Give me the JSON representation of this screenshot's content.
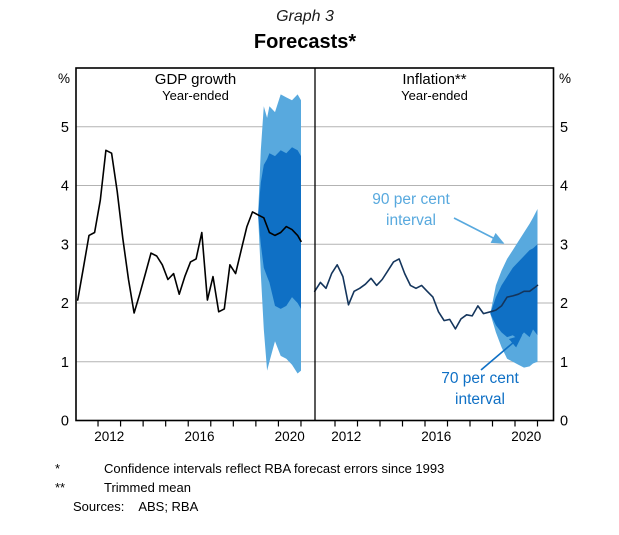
{
  "header": {
    "graph_label": "Graph 3",
    "title": "Forecasts*"
  },
  "axes": {
    "unit_left": "%",
    "unit_right": "%",
    "ylim": [
      0,
      6
    ],
    "yticks": [
      0,
      1,
      2,
      3,
      4,
      5
    ],
    "x_label_years": [
      "2012",
      "2016",
      "2020"
    ],
    "x_minor_tick_years": [
      2011.5,
      2012.5,
      2013.5,
      2014.5,
      2015.5,
      2016.5,
      2017.5,
      2018.5,
      2019.5,
      2020.5
    ],
    "x_range": [
      2010.52,
      2021.2
    ]
  },
  "colors": {
    "light_blue": "#58A9DE",
    "dark_blue": "#0F70C5",
    "gdp_line": "#000000",
    "inflation_line": "#14355C",
    "grid": "#b3b3b3",
    "frame": "#000000"
  },
  "annotations": {
    "band90": {
      "line1": "90 per cent",
      "line2": "interval"
    },
    "band70": {
      "line1": "70 per cent",
      "line2": "interval"
    }
  },
  "footnotes": [
    {
      "marker": "*",
      "text": "Confidence intervals reflect RBA forecast errors since 1993"
    },
    {
      "marker": "**",
      "text": "Trimmed mean"
    }
  ],
  "sources": {
    "label": "Sources:",
    "value": "ABS; RBA"
  },
  "chart_data": [
    {
      "type": "line",
      "panel": "left",
      "title": "GDP growth",
      "subtitle": "Year-ended",
      "series_name": "GDP growth year-ended, actual and central forecast (%)",
      "forecast_start": 2018.6,
      "line": [
        [
          2010.6,
          2.05
        ],
        [
          2010.85,
          2.6
        ],
        [
          2011.1,
          3.15
        ],
        [
          2011.35,
          3.2
        ],
        [
          2011.6,
          3.75
        ],
        [
          2011.85,
          4.6
        ],
        [
          2012.1,
          4.55
        ],
        [
          2012.35,
          3.9
        ],
        [
          2012.6,
          3.1
        ],
        [
          2012.85,
          2.4
        ],
        [
          2013.1,
          1.83
        ],
        [
          2013.35,
          2.15
        ],
        [
          2013.6,
          2.5
        ],
        [
          2013.85,
          2.85
        ],
        [
          2014.1,
          2.8
        ],
        [
          2014.35,
          2.65
        ],
        [
          2014.6,
          2.4
        ],
        [
          2014.85,
          2.5
        ],
        [
          2015.1,
          2.15
        ],
        [
          2015.35,
          2.45
        ],
        [
          2015.6,
          2.7
        ],
        [
          2015.85,
          2.75
        ],
        [
          2016.1,
          3.2
        ],
        [
          2016.35,
          2.05
        ],
        [
          2016.6,
          2.45
        ],
        [
          2016.85,
          1.85
        ],
        [
          2017.1,
          1.9
        ],
        [
          2017.35,
          2.65
        ],
        [
          2017.6,
          2.5
        ],
        [
          2017.85,
          2.9
        ],
        [
          2018.1,
          3.3
        ],
        [
          2018.35,
          3.55
        ],
        [
          2018.6,
          3.5
        ],
        [
          2018.85,
          3.45
        ],
        [
          2019.1,
          3.2
        ],
        [
          2019.35,
          3.15
        ],
        [
          2019.6,
          3.2
        ],
        [
          2019.85,
          3.3
        ],
        [
          2020.1,
          3.25
        ],
        [
          2020.35,
          3.15
        ],
        [
          2020.5,
          3.05
        ]
      ],
      "bands_format": [
        "year",
        "lo90",
        "lo70",
        "hi70",
        "hi90"
      ],
      "bands": [
        [
          2018.6,
          3.5,
          3.5,
          3.5,
          3.5
        ],
        [
          2018.72,
          2.5,
          3.0,
          4.05,
          4.6
        ],
        [
          2018.85,
          1.55,
          2.6,
          4.35,
          5.35
        ],
        [
          2019.0,
          0.85,
          2.45,
          4.45,
          5.15
        ],
        [
          2019.1,
          1.0,
          2.35,
          4.55,
          5.35
        ],
        [
          2019.35,
          1.35,
          1.95,
          4.5,
          5.25
        ],
        [
          2019.6,
          1.1,
          1.9,
          4.6,
          5.55
        ],
        [
          2019.85,
          1.05,
          1.95,
          4.55,
          5.5
        ],
        [
          2020.1,
          0.95,
          2.1,
          4.65,
          5.45
        ],
        [
          2020.35,
          0.8,
          2.0,
          4.6,
          5.55
        ],
        [
          2020.5,
          0.85,
          1.9,
          4.5,
          5.45
        ]
      ]
    },
    {
      "type": "line",
      "panel": "right",
      "title": "Inflation**",
      "subtitle": "Year-ended",
      "series_name": "Trimmed mean inflation year-ended, actual and central forecast (%)",
      "forecast_start": 2018.4,
      "line": [
        [
          2010.6,
          2.2
        ],
        [
          2010.85,
          2.35
        ],
        [
          2011.1,
          2.25
        ],
        [
          2011.35,
          2.5
        ],
        [
          2011.6,
          2.65
        ],
        [
          2011.85,
          2.45
        ],
        [
          2012.1,
          1.97
        ],
        [
          2012.35,
          2.2
        ],
        [
          2012.6,
          2.25
        ],
        [
          2012.85,
          2.32
        ],
        [
          2013.1,
          2.42
        ],
        [
          2013.35,
          2.3
        ],
        [
          2013.6,
          2.4
        ],
        [
          2013.85,
          2.55
        ],
        [
          2014.1,
          2.7
        ],
        [
          2014.35,
          2.75
        ],
        [
          2014.6,
          2.5
        ],
        [
          2014.85,
          2.3
        ],
        [
          2015.1,
          2.25
        ],
        [
          2015.35,
          2.3
        ],
        [
          2015.6,
          2.2
        ],
        [
          2015.85,
          2.1
        ],
        [
          2016.1,
          1.85
        ],
        [
          2016.35,
          1.7
        ],
        [
          2016.6,
          1.72
        ],
        [
          2016.85,
          1.56
        ],
        [
          2017.1,
          1.73
        ],
        [
          2017.35,
          1.8
        ],
        [
          2017.6,
          1.78
        ],
        [
          2017.85,
          1.95
        ],
        [
          2018.1,
          1.82
        ],
        [
          2018.4,
          1.85
        ],
        [
          2018.65,
          1.88
        ],
        [
          2018.9,
          1.95
        ],
        [
          2019.15,
          2.1
        ],
        [
          2019.4,
          2.12
        ],
        [
          2019.65,
          2.15
        ],
        [
          2019.9,
          2.2
        ],
        [
          2020.15,
          2.2
        ],
        [
          2020.4,
          2.27
        ],
        [
          2020.5,
          2.3
        ]
      ],
      "bands_format": [
        "year",
        "lo90",
        "lo70",
        "hi70",
        "hi90"
      ],
      "bands": [
        [
          2018.4,
          1.82,
          1.82,
          1.82,
          1.82
        ],
        [
          2018.65,
          1.5,
          1.62,
          2.1,
          2.3
        ],
        [
          2018.9,
          1.25,
          1.5,
          2.3,
          2.55
        ],
        [
          2019.15,
          1.05,
          1.42,
          2.45,
          2.75
        ],
        [
          2019.4,
          1.0,
          1.45,
          2.6,
          2.9
        ],
        [
          2019.65,
          0.95,
          1.38,
          2.7,
          3.05
        ],
        [
          2019.9,
          0.9,
          1.5,
          2.8,
          3.2
        ],
        [
          2020.15,
          0.92,
          1.42,
          2.9,
          3.35
        ],
        [
          2020.3,
          0.97,
          1.55,
          2.93,
          3.45
        ],
        [
          2020.5,
          1.0,
          1.45,
          3.0,
          3.6
        ]
      ]
    }
  ]
}
